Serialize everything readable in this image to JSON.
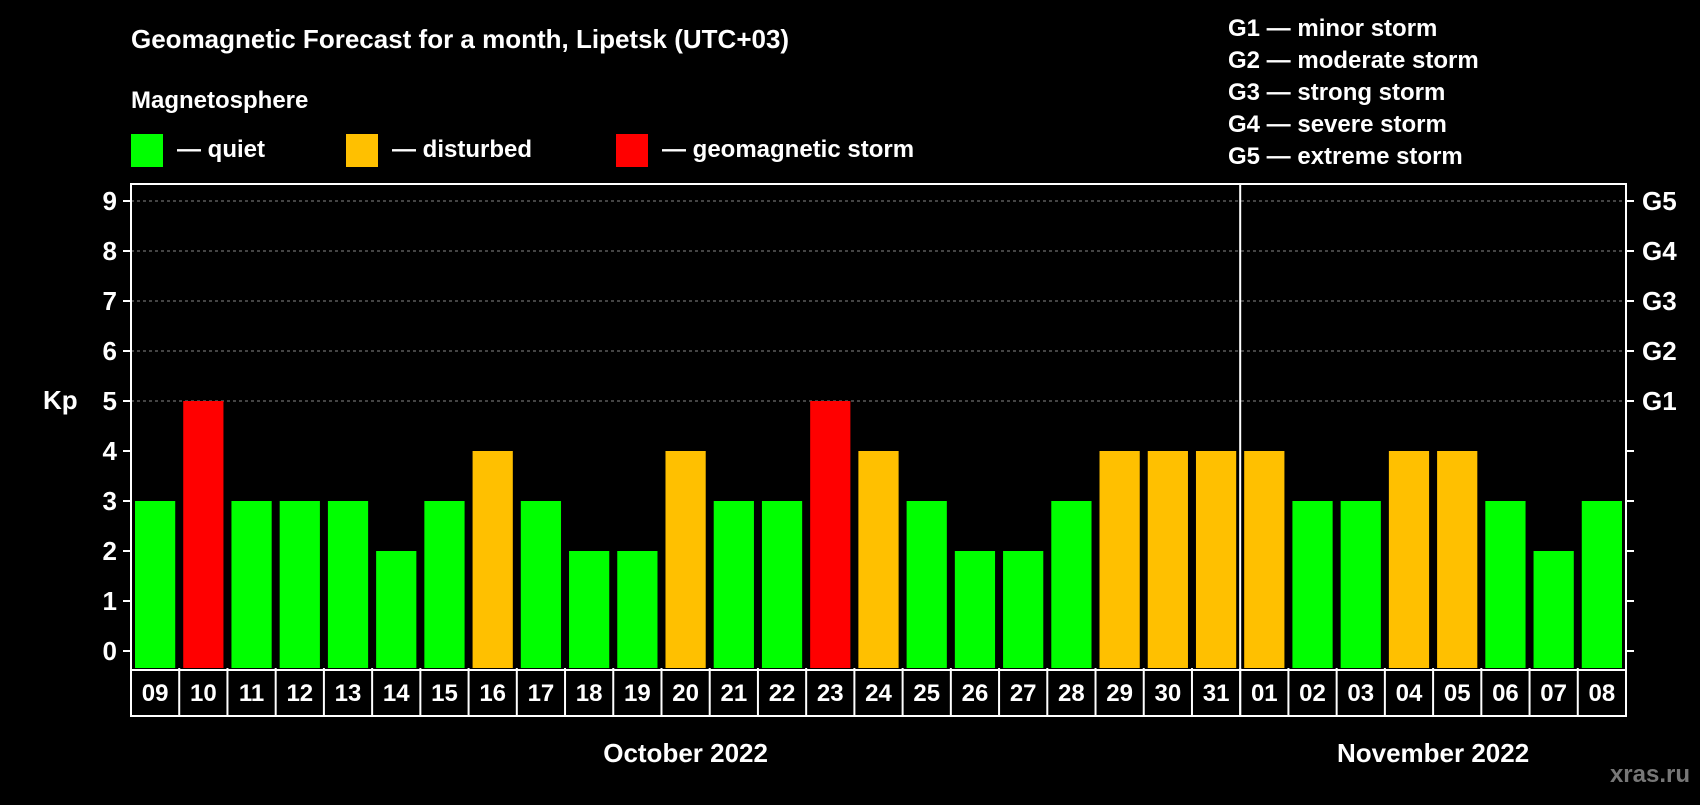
{
  "chart_data": {
    "type": "bar",
    "title": "Geomagnetic Forecast for a month, Lipetsk (UTC+03)",
    "legend_title": "Magnetosphere",
    "legend": [
      {
        "label": "— quiet",
        "color": "#00ff00"
      },
      {
        "label": "— disturbed",
        "color": "#ffc000"
      },
      {
        "label": "— geomagnetic storm",
        "color": "#ff0000"
      }
    ],
    "storm_scale": [
      "G1 — minor storm",
      "G2 — moderate storm",
      "G3 — strong storm",
      "G4 — severe storm",
      "G5 — extreme storm"
    ],
    "ylabel": "Kp",
    "ylim": [
      0,
      9
    ],
    "yticks": [
      "0",
      "1",
      "2",
      "3",
      "4",
      "5",
      "6",
      "7",
      "8",
      "9"
    ],
    "right_ticks": [
      {
        "kp": 5,
        "label": "G1"
      },
      {
        "kp": 6,
        "label": "G2"
      },
      {
        "kp": 7,
        "label": "G3"
      },
      {
        "kp": 8,
        "label": "G4"
      },
      {
        "kp": 9,
        "label": "G5"
      }
    ],
    "categories": [
      "09",
      "10",
      "11",
      "12",
      "13",
      "14",
      "15",
      "16",
      "17",
      "18",
      "19",
      "20",
      "21",
      "22",
      "23",
      "24",
      "25",
      "26",
      "27",
      "28",
      "29",
      "30",
      "31",
      "01",
      "02",
      "03",
      "04",
      "05",
      "06",
      "07",
      "08"
    ],
    "values": [
      3,
      5,
      3,
      3,
      3,
      2,
      3,
      4,
      3,
      2,
      2,
      4,
      3,
      3,
      5,
      4,
      3,
      2,
      2,
      3,
      4,
      4,
      4,
      4,
      3,
      3,
      4,
      4,
      3,
      2,
      3
    ],
    "months": [
      {
        "label": "October 2022",
        "start": 0,
        "count": 23
      },
      {
        "label": "November 2022",
        "start": 23,
        "count": 8
      }
    ],
    "grid": "dashed at Kp 5-9"
  },
  "watermark": "xras.ru"
}
